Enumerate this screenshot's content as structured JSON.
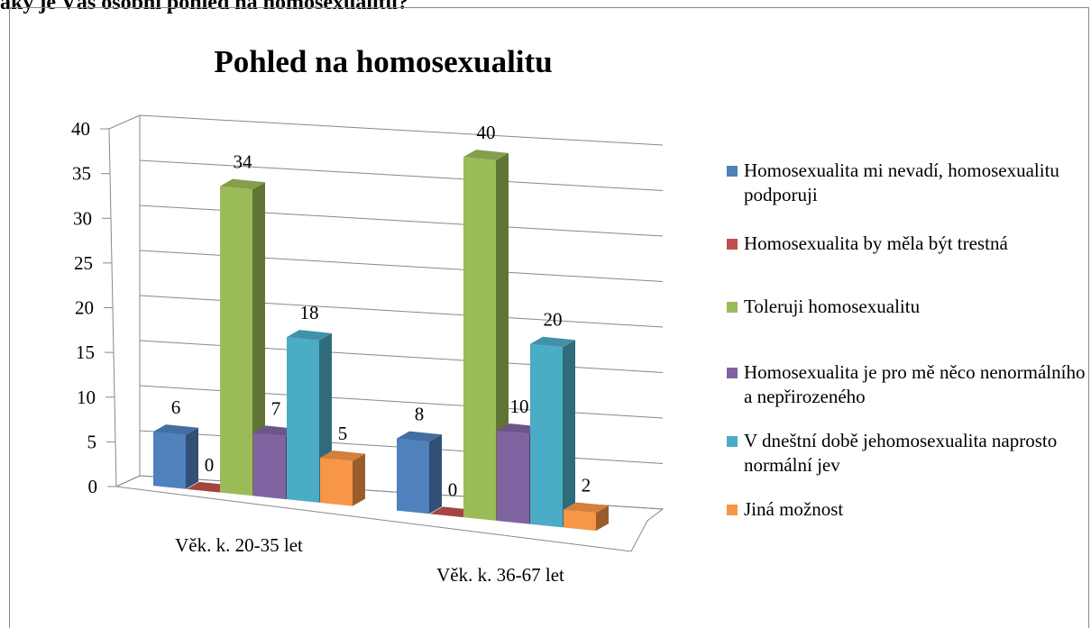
{
  "heading": "Jaký je Váš osobní pohled na homosexualitu?",
  "chart_data": {
    "type": "bar3d",
    "title": "Pohled na homosexualitu",
    "categories": [
      "Věk. k. 20-35 let",
      "Věk. k. 36-67 let"
    ],
    "series": [
      {
        "name": "Homosexualita mi nevadí, homosexualitu podporuji",
        "color": "#4f81bd",
        "values": [
          6,
          8
        ]
      },
      {
        "name": "Homosexualita by měla být trestná",
        "color": "#c0504d",
        "values": [
          0,
          0
        ]
      },
      {
        "name": "Toleruji homosexualitu",
        "color": "#9bbb59",
        "values": [
          34,
          40
        ]
      },
      {
        "name": "Homosexualita je pro mě něco nenormálního a nepřirozeného",
        "color": "#8064a2",
        "values": [
          7,
          10
        ]
      },
      {
        "name": "V dneštní době jehomosexualita naprosto normální jev",
        "color": "#4bacc6",
        "values": [
          18,
          20
        ]
      },
      {
        "name": "Jiná možnost",
        "color": "#f79646",
        "values": [
          5,
          2
        ]
      }
    ],
    "ylim": [
      0,
      40
    ],
    "yticks": [
      0,
      5,
      10,
      15,
      20,
      25,
      30,
      35,
      40
    ],
    "grid": true,
    "legend": "right"
  }
}
